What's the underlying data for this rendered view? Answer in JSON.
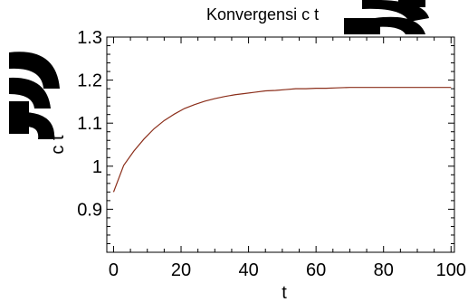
{
  "chart_data": {
    "type": "line",
    "title": "Konvergensi c t",
    "xlabel": "t",
    "ylabel": "c t",
    "xlim": [
      -2,
      101
    ],
    "ylim": [
      0.8,
      1.3
    ],
    "x_ticks": [
      0,
      20,
      40,
      60,
      80,
      100
    ],
    "x_tick_labels": [
      "0",
      "20",
      "40",
      "60",
      "80",
      "100"
    ],
    "y_ticks": [
      0.9,
      1.0,
      1.1,
      1.2,
      1.3
    ],
    "y_tick_labels": [
      "0.9",
      "1",
      "1.1",
      "1.2",
      "1.3"
    ],
    "grid": false,
    "series": [
      {
        "color": "#8B2E1A",
        "x": [
          0,
          3,
          6,
          9,
          12,
          15,
          18,
          21,
          24,
          27,
          30,
          33,
          36,
          39,
          42,
          45,
          48,
          51,
          54,
          57,
          60,
          63,
          66,
          70,
          75,
          80,
          85,
          90,
          95,
          100
        ],
        "y": [
          0.94,
          1.002,
          1.035,
          1.063,
          1.087,
          1.106,
          1.121,
          1.134,
          1.143,
          1.151,
          1.157,
          1.162,
          1.166,
          1.169,
          1.172,
          1.175,
          1.176,
          1.178,
          1.18,
          1.18,
          1.181,
          1.181,
          1.182,
          1.183,
          1.183,
          1.183,
          1.183,
          1.183,
          1.183,
          1.183
        ]
      }
    ]
  },
  "logo": {
    "text": "Logo"
  }
}
